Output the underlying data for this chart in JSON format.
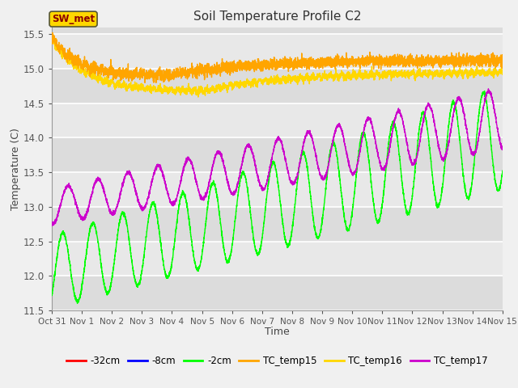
{
  "title": "Soil Temperature Profile C2",
  "xlabel": "Time",
  "ylabel": "Temperature (C)",
  "ylim": [
    11.5,
    15.6
  ],
  "xlim": [
    0,
    15
  ],
  "xtick_labels": [
    "Oct 31",
    "Nov 1",
    "Nov 2",
    "Nov 3",
    "Nov 4",
    "Nov 5",
    "Nov 6",
    "Nov 7",
    "Nov 8",
    "Nov 9",
    "Nov 10",
    "Nov 11",
    "Nov 12",
    "Nov 13",
    "Nov 14",
    "Nov 15"
  ],
  "ytick_values": [
    11.5,
    12.0,
    12.5,
    13.0,
    13.5,
    14.0,
    14.5,
    15.0,
    15.5
  ],
  "colors": {
    "TC_temp15": "#FFA500",
    "TC_temp16": "#FFD700",
    "TC_temp17": "#CC00CC",
    "neg2cm": "#00FF00",
    "neg8cm": "#0000FF",
    "neg32cm": "#FF0000"
  },
  "legend_labels": [
    "-32cm",
    "-8cm",
    "-2cm",
    "TC_temp15",
    "TC_temp16",
    "TC_temp17"
  ],
  "legend_colors": [
    "#FF0000",
    "#0000FF",
    "#00FF00",
    "#FFA500",
    "#FFD700",
    "#CC00CC"
  ],
  "sw_met_box_facecolor": "#FFD700",
  "sw_met_text_color": "#8B0000",
  "band_colors": [
    "#DCDCDC",
    "#E8E8E8"
  ],
  "grid_color": "#FFFFFF",
  "fig_facecolor": "#F0F0F0"
}
